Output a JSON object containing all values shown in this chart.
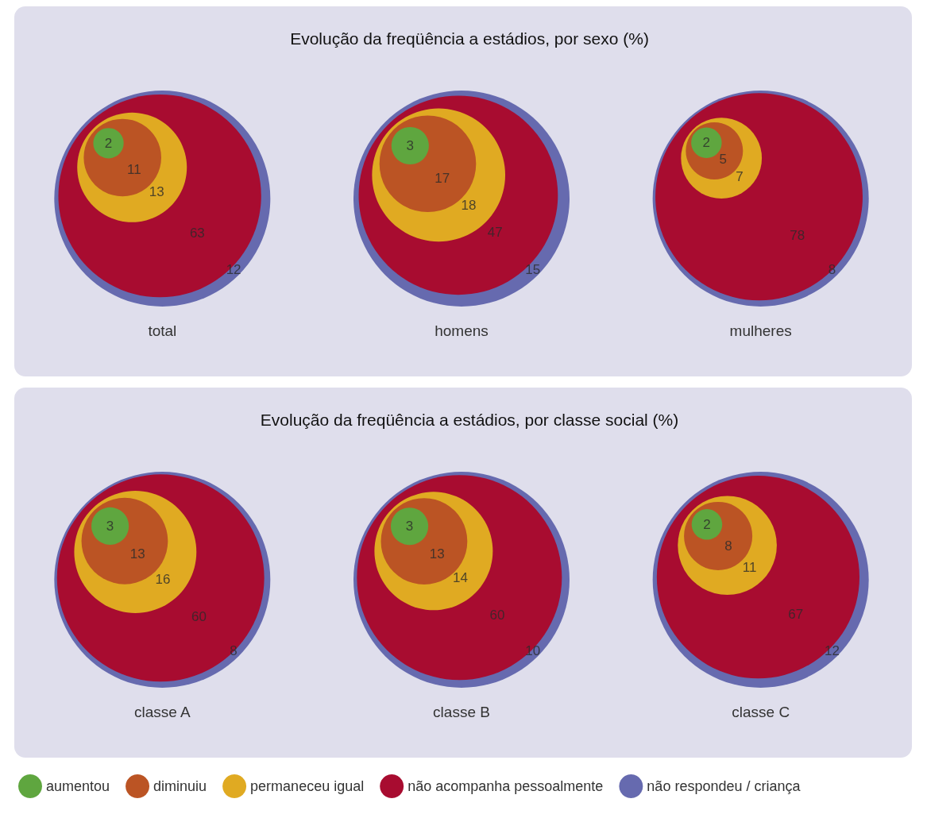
{
  "chart_data": [
    {
      "type": "other",
      "title": "Evolução da freqüência a estádios, por sexo (%)",
      "categories": [
        "total",
        "homens",
        "mulheres"
      ],
      "legend": false,
      "data_labels": true,
      "series": [
        {
          "color": "#5fa63f",
          "values": [
            2,
            3,
            2
          ]
        },
        {
          "color": "#bb5424",
          "values": [
            11,
            17,
            5
          ]
        },
        {
          "color": "#e0aa22",
          "values": [
            13,
            18,
            7
          ]
        },
        {
          "color": "#a80c30",
          "values": [
            63,
            47,
            78
          ]
        },
        {
          "color": "#666aaf",
          "values": [
            12,
            15,
            8
          ]
        }
      ]
    },
    {
      "type": "other",
      "title": "Evolução da freqüência a estádios, por classe social (%)",
      "categories": [
        "classe A",
        "classe B",
        "classe C"
      ],
      "legend": "bottom",
      "data_labels": true,
      "series": [
        {
          "name": "aumentou",
          "color": "#5fa63f",
          "values": [
            3,
            3,
            2
          ]
        },
        {
          "name": "diminuiu",
          "color": "#bb5424",
          "values": [
            13,
            13,
            8
          ]
        },
        {
          "name": "permaneceu igual",
          "color": "#e0aa22",
          "values": [
            16,
            14,
            11
          ]
        },
        {
          "name": "não acompanha pessoalmente",
          "color": "#a80c30",
          "values": [
            60,
            60,
            67
          ]
        },
        {
          "name": "não respondeu / criança",
          "color": "#666aaf",
          "values": [
            8,
            10,
            12
          ]
        }
      ]
    }
  ]
}
